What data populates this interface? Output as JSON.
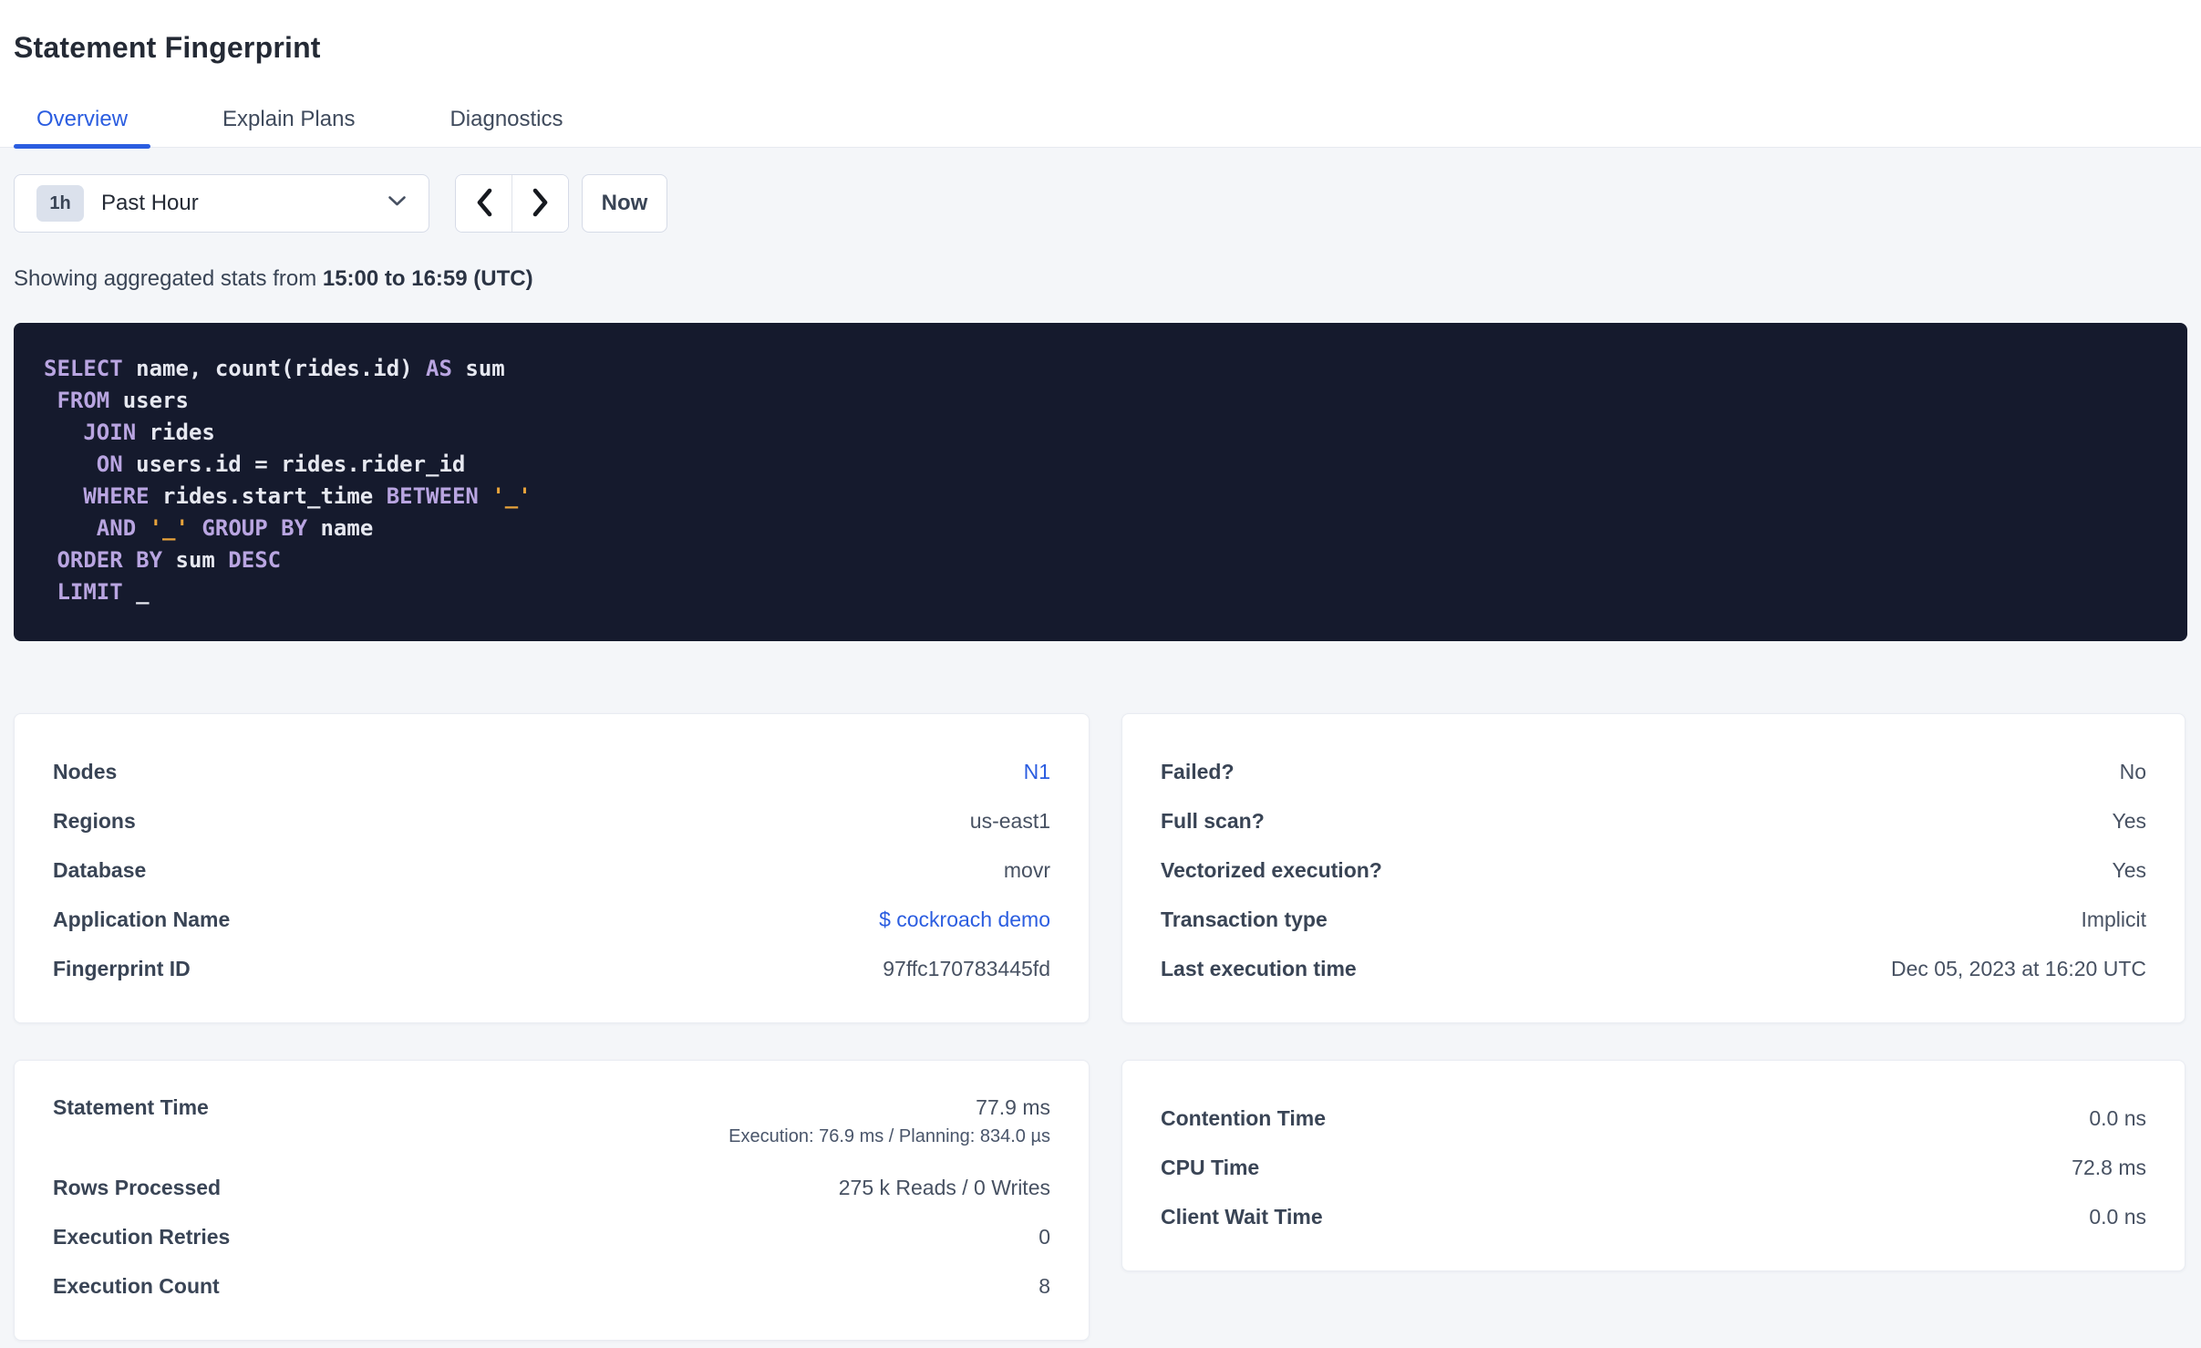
{
  "page": {
    "title": "Statement Fingerprint"
  },
  "colors": {
    "accent_blue": "#2b5de0",
    "link_blue": "#2b5de0",
    "sql_background": "#151a2d",
    "sql_keyword": "#b9a5e1",
    "sql_string": "#e8a33b",
    "sql_plain": "#e6e8f0",
    "badge_background": "#dbe1ec",
    "page_background": "#f4f6f9"
  },
  "tabs": [
    {
      "label": "Overview",
      "active": true
    },
    {
      "label": "Explain Plans",
      "active": false
    },
    {
      "label": "Diagnostics",
      "active": false
    }
  ],
  "time_controls": {
    "range_badge": "1h",
    "range_label": "Past Hour",
    "now_label": "Now",
    "icons": [
      "chevron-down-icon",
      "chevron-left-icon",
      "chevron-right-icon"
    ]
  },
  "stats_line": {
    "prefix": "Showing aggregated stats from ",
    "bold_range": "15:00 to 16:59 (UTC)"
  },
  "sql": {
    "lines": [
      [
        [
          "kw",
          "SELECT"
        ],
        [
          "id",
          " name, count(rides.id) "
        ],
        [
          "kw",
          "AS"
        ],
        [
          "id",
          " sum"
        ]
      ],
      [
        [
          "id",
          " "
        ],
        [
          "kw",
          "FROM"
        ],
        [
          "id",
          " users"
        ]
      ],
      [
        [
          "id",
          "   "
        ],
        [
          "kw",
          "JOIN"
        ],
        [
          "id",
          " rides"
        ]
      ],
      [
        [
          "id",
          "    "
        ],
        [
          "kw",
          "ON"
        ],
        [
          "id",
          " users.id = rides.rider_id"
        ]
      ],
      [
        [
          "id",
          "   "
        ],
        [
          "kw",
          "WHERE"
        ],
        [
          "id",
          " rides.start_time "
        ],
        [
          "kw",
          "BETWEEN"
        ],
        [
          "id",
          " "
        ],
        [
          "str",
          "'_'"
        ]
      ],
      [
        [
          "id",
          "    "
        ],
        [
          "kw",
          "AND"
        ],
        [
          "id",
          " "
        ],
        [
          "str",
          "'_'"
        ],
        [
          "id",
          " "
        ],
        [
          "kw",
          "GROUP BY"
        ],
        [
          "id",
          " name"
        ]
      ],
      [
        [
          "id",
          " "
        ],
        [
          "kw",
          "ORDER BY"
        ],
        [
          "id",
          " sum "
        ],
        [
          "kw",
          "DESC"
        ]
      ],
      [
        [
          "id",
          " "
        ],
        [
          "kw",
          "LIMIT"
        ],
        [
          "id",
          " _"
        ]
      ]
    ]
  },
  "cards": [
    {
      "name": "statement-details-card",
      "rows": [
        {
          "label": "Nodes",
          "value": "N1",
          "link": true
        },
        {
          "label": "Regions",
          "value": "us-east1"
        },
        {
          "label": "Database",
          "value": "movr"
        },
        {
          "label": "Application Name",
          "value": "$ cockroach demo",
          "link": true
        },
        {
          "label": "Fingerprint ID",
          "value": "97ffc170783445fd"
        }
      ]
    },
    {
      "name": "execution-attributes-card",
      "rows": [
        {
          "label": "Failed?",
          "value": "No"
        },
        {
          "label": "Full scan?",
          "value": "Yes"
        },
        {
          "label": "Vectorized execution?",
          "value": "Yes"
        },
        {
          "label": "Transaction type",
          "value": "Implicit"
        },
        {
          "label": "Last execution time",
          "value": "Dec 05, 2023 at 16:20 UTC"
        }
      ]
    },
    {
      "name": "statement-timing-card",
      "rows": [
        {
          "label": "Statement Time",
          "value": "77.9 ms",
          "subvalue": "Execution: 76.9 ms / Planning: 834.0 µs"
        },
        {
          "label": "Rows Processed",
          "value": "275 k Reads / 0 Writes"
        },
        {
          "label": "Execution Retries",
          "value": "0"
        },
        {
          "label": "Execution Count",
          "value": "8"
        }
      ]
    },
    {
      "name": "wait-time-card",
      "rows": [
        {
          "label": "Contention Time",
          "value": "0.0 ns"
        },
        {
          "label": "CPU Time",
          "value": "72.8 ms"
        },
        {
          "label": "Client Wait Time",
          "value": "0.0 ns"
        }
      ]
    }
  ]
}
